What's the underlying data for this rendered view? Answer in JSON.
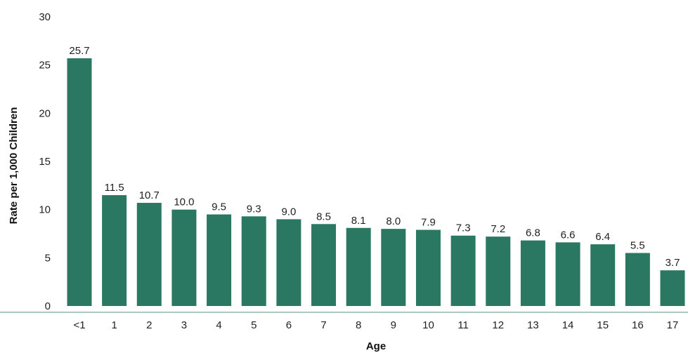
{
  "chart_data": {
    "type": "bar",
    "title": "",
    "xlabel": "Age",
    "ylabel": "Rate per 1,000 Children",
    "ylim": [
      0,
      30
    ],
    "yticks": [
      0,
      5,
      10,
      15,
      20,
      25,
      30
    ],
    "grid": false,
    "bar_color": "#2a7862",
    "axis_color": "#8fb7ab",
    "categories": [
      "<1",
      "1",
      "2",
      "3",
      "4",
      "5",
      "6",
      "7",
      "8",
      "9",
      "10",
      "11",
      "12",
      "13",
      "14",
      "15",
      "16",
      "17"
    ],
    "values": [
      25.7,
      11.5,
      10.7,
      10.0,
      9.5,
      9.3,
      9.0,
      8.5,
      8.1,
      8.0,
      7.9,
      7.3,
      7.2,
      6.8,
      6.6,
      6.4,
      5.5,
      3.7
    ],
    "value_labels": [
      "25.7",
      "11.5",
      "10.7",
      "10.0",
      "9.5",
      "9.3",
      "9.0",
      "8.5",
      "8.1",
      "8.0",
      "7.9",
      "7.3",
      "7.2",
      "6.8",
      "6.6",
      "6.4",
      "5.5",
      "3.7"
    ]
  }
}
